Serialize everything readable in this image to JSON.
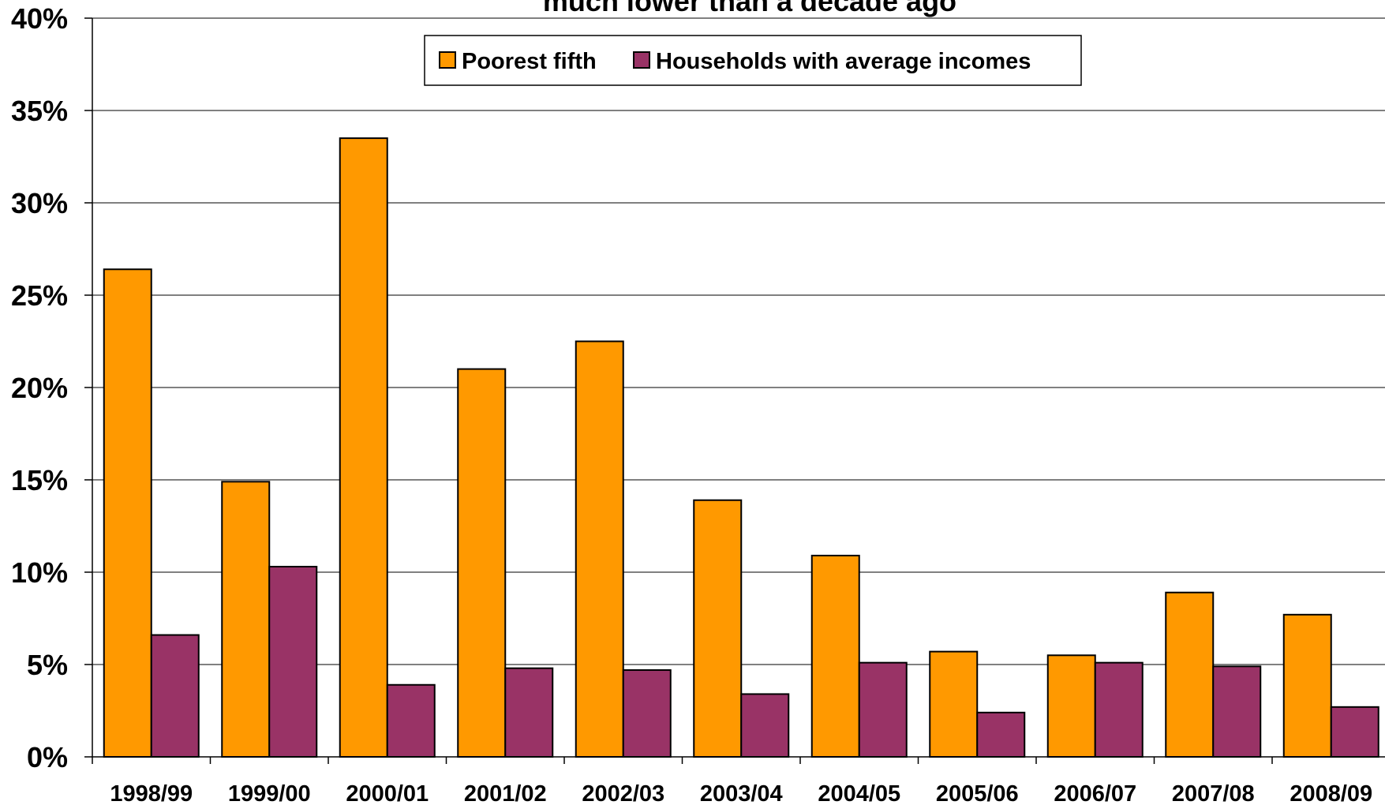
{
  "chart_data": {
    "type": "bar",
    "title": "much lower than a decade ago",
    "xlabel": "",
    "ylabel": "",
    "ylim": [
      0,
      40
    ],
    "yticks": [
      "0%",
      "5%",
      "10%",
      "15%",
      "20%",
      "25%",
      "30%",
      "35%",
      "40%"
    ],
    "ytick_values": [
      0,
      5,
      10,
      15,
      20,
      25,
      30,
      35,
      40
    ],
    "grid": true,
    "legend_position": "top-center",
    "categories": [
      "1998/99",
      "1999/00",
      "2000/01",
      "2001/02",
      "2002/03",
      "2003/04",
      "2004/05",
      "2005/06",
      "2006/07",
      "2007/08",
      "2008/09"
    ],
    "series": [
      {
        "name": "Poorest fifth",
        "color": "#FF9900",
        "values": [
          26.4,
          14.9,
          33.5,
          21.0,
          22.5,
          13.9,
          10.9,
          5.7,
          5.5,
          8.9,
          7.7
        ]
      },
      {
        "name": "Households with average incomes",
        "color": "#993366",
        "values": [
          6.6,
          10.3,
          3.9,
          4.8,
          4.7,
          3.4,
          5.1,
          2.4,
          5.1,
          4.9,
          2.7
        ]
      }
    ]
  }
}
